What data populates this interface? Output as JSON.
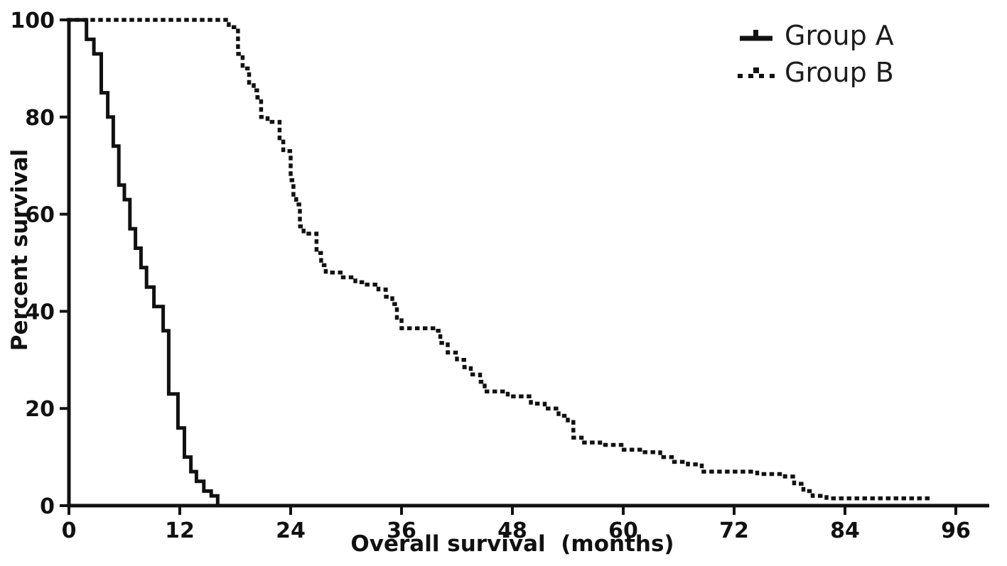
{
  "chart_data": {
    "type": "line",
    "subtype": "kaplan-meier-step-survival",
    "title": "",
    "xlabel": "Overall survival  (months)",
    "ylabel": "Percent survival",
    "xlim": [
      0,
      99
    ],
    "ylim": [
      0,
      100
    ],
    "xticks": [
      0,
      12,
      24,
      36,
      48,
      60,
      72,
      84,
      96
    ],
    "yticks": [
      0,
      20,
      40,
      60,
      80,
      100
    ],
    "grid": false,
    "legend_position": "top-right",
    "axis_color": "#111111",
    "series": [
      {
        "name": "Group A",
        "style": "solid",
        "color": "#111111",
        "points": [
          [
            0,
            100
          ],
          [
            1.9,
            96
          ],
          [
            2.7,
            93
          ],
          [
            3.5,
            85
          ],
          [
            4.2,
            80
          ],
          [
            4.8,
            74
          ],
          [
            5.4,
            66
          ],
          [
            6.0,
            63
          ],
          [
            6.6,
            57
          ],
          [
            7.2,
            53
          ],
          [
            7.8,
            49
          ],
          [
            8.4,
            45
          ],
          [
            9.2,
            41
          ],
          [
            10.2,
            36
          ],
          [
            10.8,
            23
          ],
          [
            11.8,
            16
          ],
          [
            12.5,
            10
          ],
          [
            13.2,
            7
          ],
          [
            13.8,
            5
          ],
          [
            14.6,
            3
          ],
          [
            15.4,
            2
          ],
          [
            16.1,
            0
          ]
        ]
      },
      {
        "name": "Group B",
        "style": "dotted",
        "color": "#111111",
        "points": [
          [
            0,
            100
          ],
          [
            17.3,
            98.5
          ],
          [
            18.3,
            93
          ],
          [
            18.8,
            90
          ],
          [
            19.5,
            87
          ],
          [
            20.0,
            85.5
          ],
          [
            20.4,
            84
          ],
          [
            20.8,
            80
          ],
          [
            21.5,
            79
          ],
          [
            22.8,
            75
          ],
          [
            23.2,
            73
          ],
          [
            24.0,
            67
          ],
          [
            24.3,
            64
          ],
          [
            24.6,
            62
          ],
          [
            25.0,
            57.5
          ],
          [
            25.4,
            56
          ],
          [
            26.8,
            52
          ],
          [
            27.3,
            49.5
          ],
          [
            27.8,
            48
          ],
          [
            29.5,
            47
          ],
          [
            31.0,
            46
          ],
          [
            32.0,
            45.5
          ],
          [
            33.5,
            44.5
          ],
          [
            34.3,
            43
          ],
          [
            35.0,
            41.5
          ],
          [
            35.5,
            38.5
          ],
          [
            36.0,
            36.5
          ],
          [
            39.5,
            36
          ],
          [
            40.2,
            33.5
          ],
          [
            41.0,
            31.5
          ],
          [
            42.0,
            30
          ],
          [
            42.8,
            28.5
          ],
          [
            43.5,
            27
          ],
          [
            44.5,
            25.5
          ],
          [
            45.0,
            23.5
          ],
          [
            47.5,
            22.5
          ],
          [
            50.0,
            21
          ],
          [
            51.5,
            20
          ],
          [
            53.0,
            18.5
          ],
          [
            54.0,
            17.5
          ],
          [
            54.6,
            14
          ],
          [
            55.5,
            13
          ],
          [
            57.5,
            12.5
          ],
          [
            60.0,
            11.5
          ],
          [
            62.0,
            11
          ],
          [
            64.0,
            10
          ],
          [
            65.5,
            9
          ],
          [
            67.0,
            8.5
          ],
          [
            68.5,
            7
          ],
          [
            74.5,
            6.5
          ],
          [
            77.5,
            6
          ],
          [
            78.5,
            4.5
          ],
          [
            79.5,
            3
          ],
          [
            80.5,
            2
          ],
          [
            82.0,
            1.5
          ],
          [
            93.5,
            1.5
          ]
        ]
      }
    ]
  },
  "legend": {
    "items": [
      {
        "label": "Group A",
        "marker": "solid-line-with-censor-tick"
      },
      {
        "label": "Group B",
        "marker": "dotted-line-with-censor-tick"
      }
    ]
  }
}
